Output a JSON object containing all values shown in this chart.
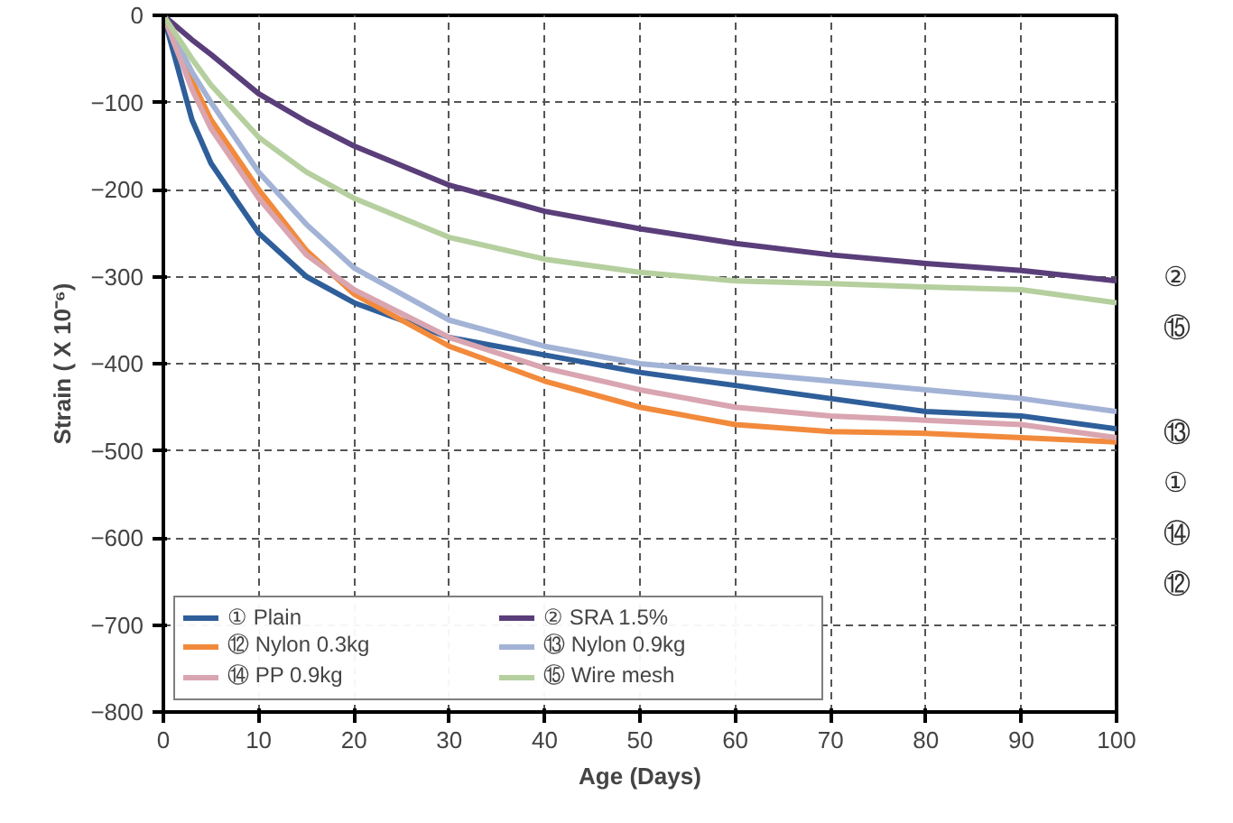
{
  "chart_data": {
    "type": "line",
    "xlabel": "Age (Days)",
    "ylabel": "Strain ( X 10⁻⁶)",
    "x": [
      0,
      3,
      5,
      10,
      15,
      20,
      30,
      40,
      50,
      60,
      70,
      80,
      90,
      100
    ],
    "series": [
      {
        "name": "① Plain",
        "color": "#2f5f9a",
        "values": [
          0,
          -120,
          -170,
          -250,
          -300,
          -330,
          -370,
          -390,
          -410,
          -425,
          -440,
          -455,
          -460,
          -475
        ]
      },
      {
        "name": "② SRA 1.5%",
        "color": "#5a3e7a",
        "values": [
          0,
          -28,
          -45,
          -90,
          -122,
          -150,
          -195,
          -225,
          -245,
          -262,
          -275,
          -285,
          -293,
          -305
        ]
      },
      {
        "name": "⑫ Nylon 0.3kg",
        "color": "#f28a3c",
        "values": [
          0,
          -75,
          -120,
          -200,
          -270,
          -320,
          -380,
          -420,
          -450,
          -470,
          -478,
          -480,
          -485,
          -490
        ]
      },
      {
        "name": "⑬ Nylon 0.9kg",
        "color": "#a3b3d6",
        "values": [
          0,
          -65,
          -100,
          -180,
          -240,
          -290,
          -350,
          -380,
          -400,
          -410,
          -420,
          -430,
          -440,
          -455
        ]
      },
      {
        "name": "⑭ PP 0.9kg",
        "color": "#d9a5b0",
        "values": [
          0,
          -85,
          -130,
          -210,
          -275,
          -315,
          -370,
          -405,
          -430,
          -450,
          -460,
          -465,
          -470,
          -485
        ]
      },
      {
        "name": "⑮ Wire mesh",
        "color": "#b5cf9e",
        "values": [
          0,
          -50,
          -80,
          -140,
          -180,
          -210,
          -255,
          -280,
          -295,
          -305,
          -308,
          -312,
          -315,
          -330
        ]
      }
    ],
    "xlim": [
      0,
      100
    ],
    "xticks": [
      0,
      10,
      20,
      30,
      40,
      50,
      60,
      70,
      80,
      90,
      100
    ],
    "ylim": [
      -800,
      0
    ],
    "yticks": [
      -800,
      -700,
      -600,
      -500,
      -400,
      -300,
      -200,
      -100,
      0
    ],
    "grid": true,
    "legend": "bottom left",
    "line_style": "solid",
    "annotations": [
      "②",
      "⑮",
      "⑬",
      "①",
      "⑭",
      "⑫"
    ]
  }
}
